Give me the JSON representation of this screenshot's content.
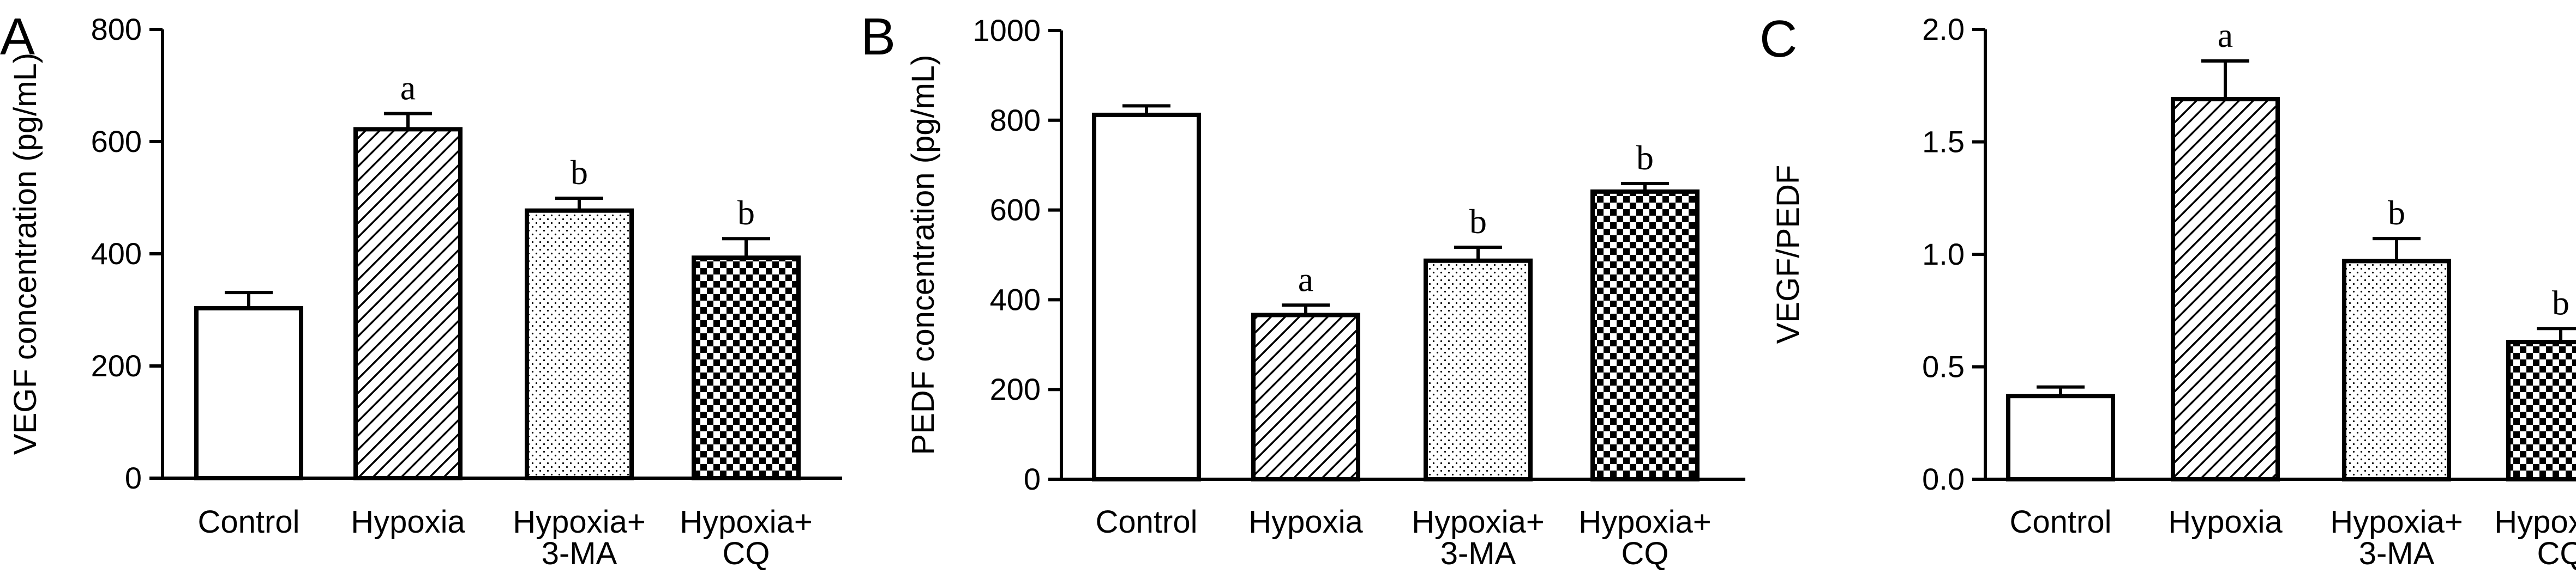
{
  "chart_data": [
    {
      "panel": "A",
      "type": "bar",
      "categories": [
        [
          "Control"
        ],
        [
          "Hypoxia"
        ],
        [
          "Hypoxia+",
          "3-MA"
        ],
        [
          "Hypoxia+",
          "CQ"
        ]
      ],
      "values": [
        303,
        622,
        477,
        393
      ],
      "errors": [
        28,
        28,
        22,
        34
      ],
      "annotations": [
        "",
        "a",
        "b",
        "b"
      ],
      "patterns": [
        "blank",
        "hatch",
        "dots",
        "checker"
      ],
      "ylabel": "VEGF concentration (pg/mL)",
      "ylim": [
        0,
        800
      ],
      "yticks": [
        0,
        200,
        400,
        600,
        800
      ],
      "ytick_labels": [
        "0",
        "200",
        "400",
        "600",
        "800"
      ]
    },
    {
      "panel": "B",
      "type": "bar",
      "categories": [
        [
          "Control"
        ],
        [
          "Hypoxia"
        ],
        [
          "Hypoxia+",
          "3-MA"
        ],
        [
          "Hypoxia+",
          "CQ"
        ]
      ],
      "values": [
        812,
        366,
        487,
        641
      ],
      "errors": [
        20,
        22,
        30,
        18
      ],
      "annotations": [
        "",
        "a",
        "b",
        "b"
      ],
      "patterns": [
        "blank",
        "hatch",
        "dots",
        "checker"
      ],
      "ylabel": "PEDF concentration (pg/mL)",
      "ylim": [
        0,
        1000
      ],
      "yticks": [
        0,
        200,
        400,
        600,
        800,
        1000
      ],
      "ytick_labels": [
        "0",
        "200",
        "400",
        "600",
        "800",
        "1000"
      ]
    },
    {
      "panel": "C",
      "type": "bar",
      "categories": [
        [
          "Control"
        ],
        [
          "Hypoxia"
        ],
        [
          "Hypoxia+",
          "3-MA"
        ],
        [
          "Hypoxia+",
          "CQ"
        ]
      ],
      "values": [
        0.37,
        1.69,
        0.97,
        0.61
      ],
      "errors": [
        0.04,
        0.17,
        0.1,
        0.06
      ],
      "annotations": [
        "",
        "a",
        "b",
        "b"
      ],
      "patterns": [
        "blank",
        "hatch",
        "dots",
        "checker"
      ],
      "ylabel": "VEGF/PEDF",
      "ylim": [
        0,
        2.0
      ],
      "yticks": [
        0,
        0.5,
        1.0,
        1.5,
        2.0
      ],
      "ytick_labels": [
        "0.0",
        "0.5",
        "1.0",
        "1.5",
        "2.0"
      ]
    }
  ]
}
